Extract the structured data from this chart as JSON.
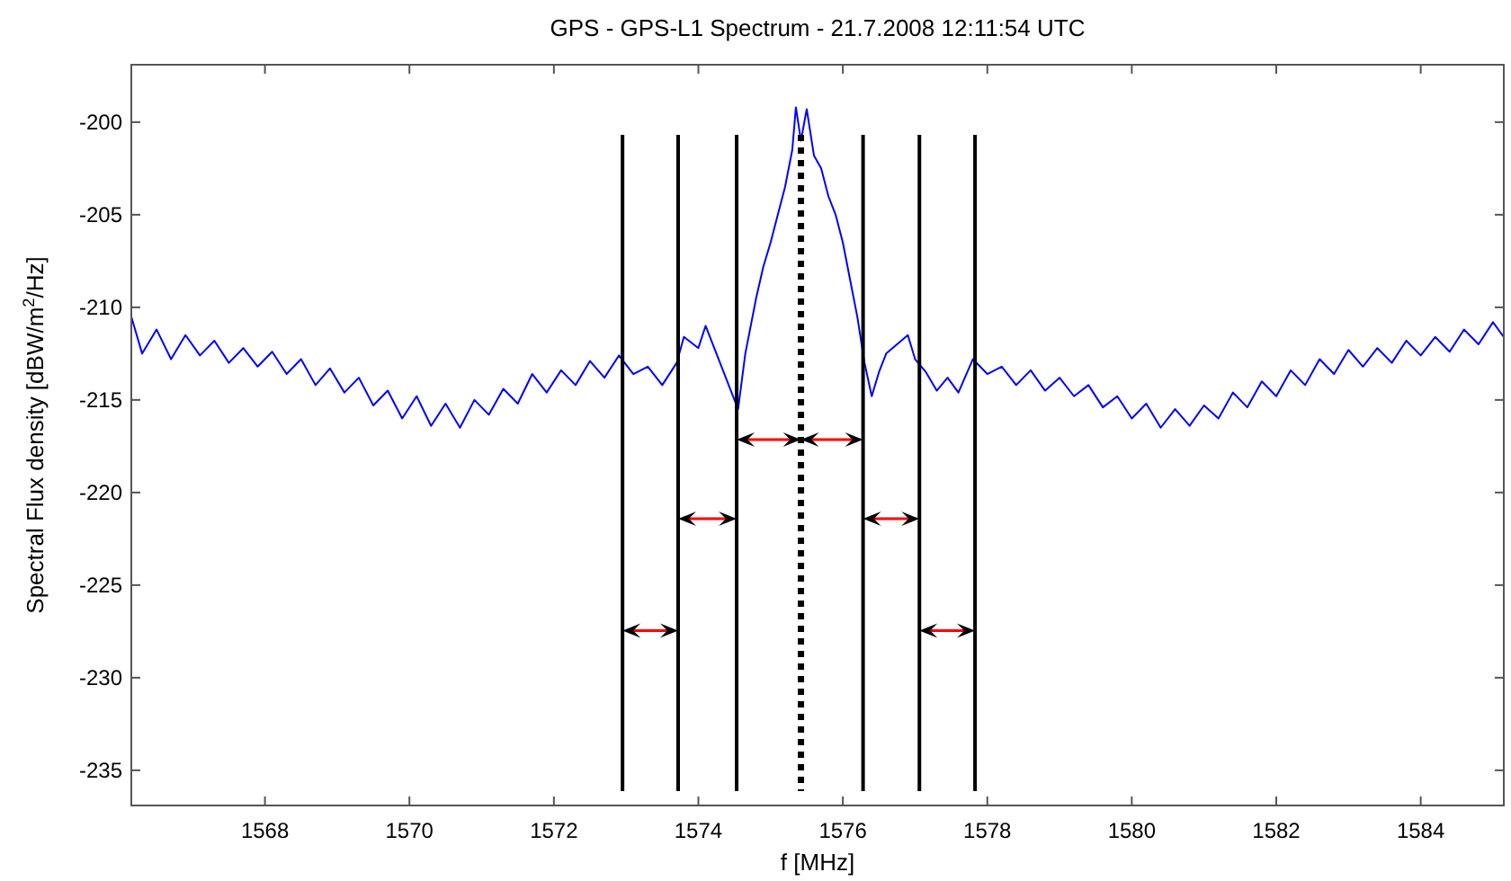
{
  "chart_data": {
    "type": "line",
    "title": "GPS - GPS-L1 Spectrum - 21.7.2008 12:11:54 UTC",
    "xlabel": "f [MHz]",
    "ylabel": "Spectral Flux density [dBW/m$^{2}$/Hz]",
    "xlim": [
      1566.15,
      1585.15
    ],
    "ylim": [
      -236.9,
      -196.9
    ],
    "xticks": [
      1568,
      1570,
      1572,
      1574,
      1576,
      1578,
      1580,
      1582,
      1584
    ],
    "yticks": [
      -200,
      -205,
      -210,
      -215,
      -220,
      -225,
      -230,
      -235
    ],
    "grid": false,
    "ref_lines": [
      {
        "axis": "x",
        "value": 1572.95,
        "color": "#000000",
        "line_style": "solid"
      },
      {
        "axis": "x",
        "value": 1573.72,
        "color": "#000000",
        "line_style": "solid"
      },
      {
        "axis": "x",
        "value": 1574.53,
        "color": "#000000",
        "line_style": "solid"
      },
      {
        "axis": "x",
        "value": 1575.42,
        "color": "#000000",
        "line_style": "dotted"
      },
      {
        "axis": "x",
        "value": 1576.28,
        "color": "#000000",
        "line_style": "solid"
      },
      {
        "axis": "x",
        "value": 1577.06,
        "color": "#000000",
        "line_style": "solid"
      },
      {
        "axis": "x",
        "value": 1577.83,
        "color": "#000000",
        "line_style": "solid"
      }
    ],
    "x": [
      1566.15,
      1566.3,
      1566.5,
      1566.7,
      1566.9,
      1567.1,
      1567.3,
      1567.5,
      1567.7,
      1567.9,
      1568.1,
      1568.3,
      1568.5,
      1568.7,
      1568.9,
      1569.1,
      1569.3,
      1569.5,
      1569.7,
      1569.9,
      1570.1,
      1570.3,
      1570.5,
      1570.7,
      1570.9,
      1571.1,
      1571.3,
      1571.5,
      1571.7,
      1571.9,
      1572.1,
      1572.3,
      1572.5,
      1572.7,
      1572.9,
      1573.1,
      1573.3,
      1573.5,
      1573.7,
      1573.8,
      1574,
      1574.1,
      1574.3,
      1574.45,
      1574.55,
      1574.65,
      1574.8,
      1574.9,
      1575,
      1575.1,
      1575.2,
      1575.3,
      1575.35,
      1575.42,
      1575.5,
      1575.6,
      1575.7,
      1575.8,
      1575.9,
      1576,
      1576.1,
      1576.2,
      1576.3,
      1576.4,
      1576.5,
      1576.6,
      1576.75,
      1576.9,
      1577,
      1577.15,
      1577.3,
      1577.45,
      1577.6,
      1577.8,
      1578,
      1578.2,
      1578.4,
      1578.6,
      1578.8,
      1579,
      1579.2,
      1579.4,
      1579.6,
      1579.8,
      1580,
      1580.2,
      1580.4,
      1580.6,
      1580.8,
      1581,
      1581.2,
      1581.4,
      1581.6,
      1581.8,
      1582,
      1582.2,
      1582.4,
      1582.6,
      1582.8,
      1583,
      1583.2,
      1583.4,
      1583.6,
      1583.8,
      1584,
      1584.2,
      1584.4,
      1584.6,
      1584.8,
      1585,
      1585.15
    ],
    "series": [
      {
        "color": "#0000ff",
        "line_style": "solid",
        "values": [
          -210.5,
          -212.5,
          -211.2,
          -212.8,
          -211.5,
          -212.6,
          -211.8,
          -213,
          -212.2,
          -213.2,
          -212.4,
          -213.6,
          -212.8,
          -214.2,
          -213.3,
          -214.6,
          -213.8,
          -215.3,
          -214.5,
          -216,
          -214.8,
          -216.4,
          -215.2,
          -216.5,
          -215,
          -215.8,
          -214.4,
          -215.2,
          -213.6,
          -214.6,
          -213.4,
          -214.2,
          -212.9,
          -213.8,
          -212.6,
          -213.6,
          -213.2,
          -214.2,
          -213,
          -211.6,
          -212.2,
          -211,
          -213,
          -214.5,
          -215.5,
          -212.5,
          -209.5,
          -207.8,
          -206.5,
          -205,
          -203.5,
          -201.5,
          -199.2,
          -201,
          -199.3,
          -201.8,
          -202.5,
          -204,
          -205,
          -206.5,
          -208.5,
          -210.5,
          -213,
          -214.8,
          -213.5,
          -212.5,
          -212,
          -211.5,
          -212.8,
          -213.5,
          -214.5,
          -213.8,
          -214.6,
          -212.8,
          -213.6,
          -213.2,
          -214.2,
          -213.4,
          -214.5,
          -213.8,
          -214.8,
          -214.2,
          -215.4,
          -214.8,
          -216,
          -215.2,
          -216.5,
          -215.5,
          -216.4,
          -215.3,
          -216,
          -214.6,
          -215.4,
          -214,
          -214.8,
          -213.4,
          -214.2,
          -212.8,
          -213.6,
          -212.3,
          -213.2,
          -212.2,
          -213,
          -211.8,
          -212.6,
          -211.6,
          -212.4,
          -211.2,
          -212,
          -210.8,
          -211.6
        ]
      }
    ]
  }
}
